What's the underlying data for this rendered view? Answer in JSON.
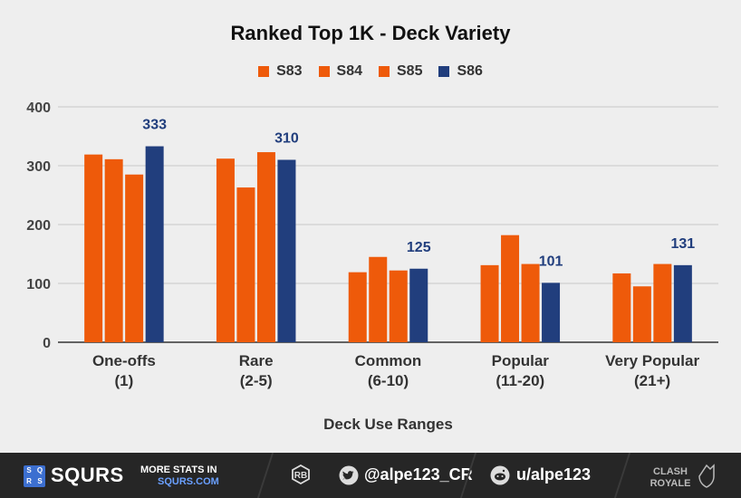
{
  "chart_data": {
    "type": "bar",
    "title": "Ranked Top 1K - Deck Variety",
    "xlabel": "Deck Use Ranges",
    "ylabel": "",
    "ylim": [
      0,
      400
    ],
    "yticks": [
      0,
      100,
      200,
      300,
      400
    ],
    "grid": true,
    "legend_position": "top-center",
    "categories": [
      [
        "One-offs",
        "(1)"
      ],
      [
        "Rare",
        "(2-5)"
      ],
      [
        "Common",
        "(6-10)"
      ],
      [
        "Popular",
        "(11-20)"
      ],
      [
        "Very Popular",
        "(21+)"
      ]
    ],
    "series": [
      {
        "name": "S83",
        "color": "#ee5a0a",
        "values": [
          319,
          312,
          119,
          131,
          117
        ]
      },
      {
        "name": "S84",
        "color": "#ee5a0a",
        "values": [
          311,
          263,
          145,
          182,
          95
        ]
      },
      {
        "name": "S85",
        "color": "#ee5a0a",
        "values": [
          285,
          323,
          122,
          133,
          133
        ]
      },
      {
        "name": "S86",
        "color": "#213e7d",
        "values": [
          333,
          310,
          125,
          101,
          131
        ],
        "labeled": true
      }
    ],
    "label_color": "#213e7d"
  },
  "footer": {
    "logo_text": "SQRS",
    "brand": "SQURS",
    "more_line1": "MORE STATS IN",
    "more_line2": "SQURS.COM",
    "twitter": "@alpe123_CR",
    "reddit": "u/alpe123",
    "game_logo": [
      "CLASH",
      "ROYALE"
    ]
  }
}
